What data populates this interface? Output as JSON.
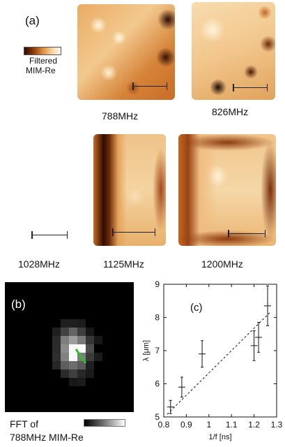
{
  "panel_a": {
    "label": "(a)",
    "colorbar_line1": "Filtered",
    "colorbar_line2": "MIM-Re",
    "colorbar_colors": [
      "#2a0b02",
      "#8c3a0c",
      "#dc8a3c",
      "#f6d19c",
      "#fffbf0"
    ],
    "images": [
      {
        "freq": "788MHz"
      },
      {
        "freq": "826MHz"
      },
      {
        "freq": "1028MHz"
      },
      {
        "freq": "1125MHz"
      },
      {
        "freq": "1200MHz"
      }
    ]
  },
  "panel_b": {
    "label": "(b)",
    "caption_line1": "FFT of",
    "caption_line2": "788MHz MIM-Re",
    "arrow_color": "#2fbf2f"
  },
  "panel_c": {
    "label": "(c)"
  },
  "chart_data": {
    "type": "scatter",
    "xlabel": "1/f [ns]",
    "ylabel": "λ [μm]",
    "xlim": [
      0.8,
      1.3
    ],
    "ylim": [
      5,
      9
    ],
    "xticks": [
      "0.8",
      "0.9",
      "1",
      "1.1",
      "1.2",
      "1.3"
    ],
    "yticks": [
      "5",
      "6",
      "7",
      "8",
      "9"
    ],
    "points": [
      {
        "x": 0.83,
        "y": 5.3,
        "yerr": 0.2
      },
      {
        "x": 0.88,
        "y": 5.9,
        "yerr": 0.3
      },
      {
        "x": 0.97,
        "y": 6.9,
        "yerr": 0.4
      },
      {
        "x": 1.2,
        "y": 7.15,
        "yerr": 0.45
      },
      {
        "x": 1.22,
        "y": 7.4,
        "yerr": 0.45
      },
      {
        "x": 1.26,
        "y": 8.35,
        "yerr": 0.6
      }
    ],
    "fit_line": {
      "style": "dashed",
      "x": [
        0.815,
        1.275
      ],
      "y": [
        5.08,
        8.18
      ]
    }
  }
}
